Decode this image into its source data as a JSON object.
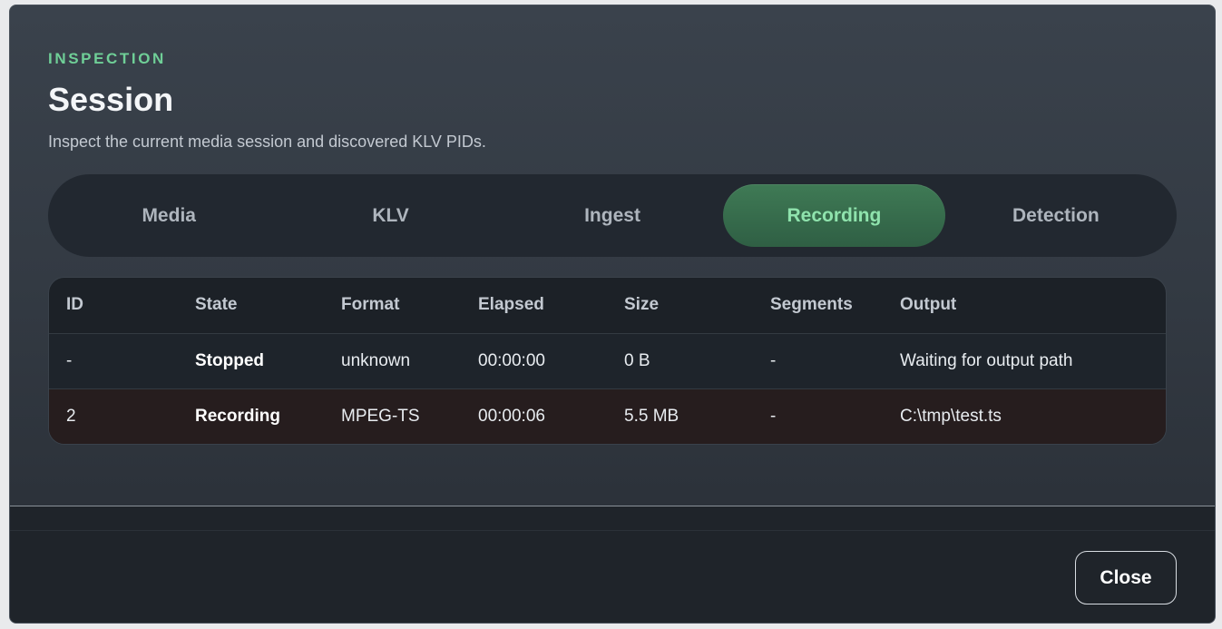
{
  "dialog": {
    "eyebrow": "INSPECTION",
    "title": "Session",
    "subtitle": "Inspect the current media session and discovered KLV PIDs."
  },
  "tabs": [
    {
      "label": "Media",
      "active": false
    },
    {
      "label": "KLV",
      "active": false
    },
    {
      "label": "Ingest",
      "active": false
    },
    {
      "label": "Recording",
      "active": true
    },
    {
      "label": "Detection",
      "active": false
    }
  ],
  "table": {
    "columns": [
      "ID",
      "State",
      "Format",
      "Elapsed",
      "Size",
      "Segments",
      "Output"
    ],
    "rows": [
      [
        "-",
        "Stopped",
        "unknown",
        "00:00:00",
        "0 B",
        "-",
        "Waiting for output path"
      ],
      [
        "2",
        "Recording",
        "MPEG-TS",
        "00:00:06",
        "5.5 MB",
        "-",
        "C:\\tmp\\test.ts"
      ]
    ]
  },
  "footer": {
    "close_label": "Close"
  },
  "colors": {
    "accent": "#6fcf97",
    "active_tab_bg": "#3f7a55",
    "recording_row_bg": "#261d1e"
  }
}
